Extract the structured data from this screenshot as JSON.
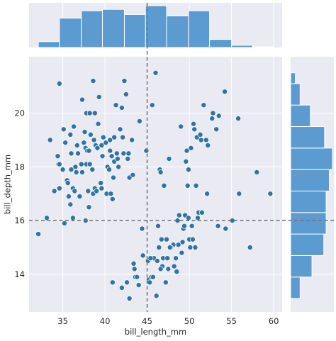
{
  "chart_data": {
    "type": "scatter",
    "subtype": "jointplot",
    "xlabel": "bill_length_mm",
    "ylabel": "bill_depth_mm",
    "xlim": [
      31,
      61
    ],
    "ylim": [
      12.6,
      22.1
    ],
    "xticks": [
      35,
      40,
      45,
      50,
      55,
      60
    ],
    "yticks": [
      14,
      16,
      18,
      20
    ],
    "grid": true,
    "reference_lines": {
      "x": 45,
      "y": 16
    },
    "colors": {
      "background": "#eaeaf2",
      "grid": "#ffffff",
      "marker": "#3274a1",
      "bar": "#5b9bd0",
      "bar_edge": "#ffffff",
      "refline": "#777777"
    },
    "marginal_x_hist": {
      "bin_edges": [
        32.1,
        34.6,
        37.2,
        39.7,
        42.3,
        44.8,
        47.3,
        49.9,
        52.4,
        55.0,
        57.5,
        60.0
      ],
      "counts": [
        8,
        40,
        50,
        52,
        45,
        57,
        43,
        50,
        11,
        3,
        1
      ]
    },
    "marginal_y_hist": {
      "bin_edges": [
        13.1,
        13.9,
        14.7,
        15.5,
        16.3,
        17.1,
        17.9,
        18.7,
        19.5,
        20.3,
        21.1,
        21.5
      ],
      "counts": [
        12,
        27,
        42,
        45,
        45,
        49,
        53,
        43,
        25,
        12,
        6
      ]
    },
    "points": [
      [
        32.1,
        15.5
      ],
      [
        33.1,
        16.1
      ],
      [
        33.5,
        19.0
      ],
      [
        34.4,
        18.4
      ],
      [
        34.5,
        18.1
      ],
      [
        34.6,
        21.1
      ],
      [
        34.6,
        17.2
      ],
      [
        34.0,
        17.1
      ],
      [
        34.6,
        18.1
      ],
      [
        35.0,
        17.9
      ],
      [
        35.1,
        19.4
      ],
      [
        35.2,
        15.9
      ],
      [
        35.3,
        18.9
      ],
      [
        35.5,
        17.5
      ],
      [
        35.6,
        17.4
      ],
      [
        35.7,
        16.9
      ],
      [
        35.9,
        19.2
      ],
      [
        35.9,
        16.6
      ],
      [
        36.0,
        17.9
      ],
      [
        36.0,
        18.5
      ],
      [
        36.2,
        17.2
      ],
      [
        36.2,
        16.1
      ],
      [
        36.3,
        19.5
      ],
      [
        36.4,
        17.1
      ],
      [
        36.5,
        18.0
      ],
      [
        36.6,
        17.8
      ],
      [
        36.7,
        18.8
      ],
      [
        36.8,
        18.5
      ],
      [
        37.0,
        16.9
      ],
      [
        37.2,
        18.1
      ],
      [
        37.3,
        20.5
      ],
      [
        37.3,
        17.8
      ],
      [
        37.5,
        18.9
      ],
      [
        37.6,
        19.3
      ],
      [
        37.7,
        18.7
      ],
      [
        37.7,
        16.0
      ],
      [
        37.8,
        20.0
      ],
      [
        37.8,
        18.1
      ],
      [
        37.9,
        18.6
      ],
      [
        38.0,
        17.1
      ],
      [
        38.1,
        18.6
      ],
      [
        38.1,
        16.5
      ],
      [
        38.2,
        18.1
      ],
      [
        38.2,
        20.0
      ],
      [
        38.3,
        19.2
      ],
      [
        38.5,
        17.9
      ],
      [
        38.6,
        21.2
      ],
      [
        38.6,
        17.0
      ],
      [
        38.7,
        19.0
      ],
      [
        38.8,
        17.2
      ],
      [
        38.8,
        20.0
      ],
      [
        38.9,
        18.8
      ],
      [
        39.0,
        17.1
      ],
      [
        39.1,
        18.7
      ],
      [
        39.2,
        19.6
      ],
      [
        39.3,
        20.6
      ],
      [
        39.5,
        17.4
      ],
      [
        39.6,
        18.8
      ],
      [
        39.6,
        17.2
      ],
      [
        39.7,
        18.4
      ],
      [
        39.8,
        19.1
      ],
      [
        40.1,
        18.9
      ],
      [
        40.2,
        17.0
      ],
      [
        40.3,
        18.0
      ],
      [
        40.5,
        17.9
      ],
      [
        40.6,
        18.6
      ],
      [
        40.6,
        19.0
      ],
      [
        40.7,
        17.0
      ],
      [
        40.8,
        18.4
      ],
      [
        40.9,
        16.8
      ],
      [
        41.0,
        17.6
      ],
      [
        41.1,
        18.2
      ],
      [
        41.1,
        19.1
      ],
      [
        41.3,
        20.3
      ],
      [
        41.4,
        18.5
      ],
      [
        41.5,
        18.3
      ],
      [
        41.6,
        18.0
      ],
      [
        41.8,
        19.4
      ],
      [
        42.0,
        20.2
      ],
      [
        42.1,
        19.1
      ],
      [
        42.2,
        18.5
      ],
      [
        42.3,
        21.2
      ],
      [
        42.5,
        20.7
      ],
      [
        42.7,
        18.3
      ],
      [
        42.8,
        18.5
      ],
      [
        42.9,
        17.6
      ],
      [
        43.2,
        19.0
      ],
      [
        43.3,
        17.7
      ],
      [
        44.1,
        19.7
      ],
      [
        44.9,
        18.6
      ],
      [
        45.6,
        20.3
      ],
      [
        46.0,
        21.5
      ],
      [
        46.3,
        15.8
      ],
      [
        46.5,
        17.9
      ],
      [
        46.7,
        15.3
      ],
      [
        46.8,
        14.3
      ],
      [
        47.0,
        17.3
      ],
      [
        47.5,
        14.2
      ],
      [
        47.6,
        18.3
      ],
      [
        48.1,
        15.1
      ],
      [
        48.4,
        14.6
      ],
      [
        48.7,
        15.1
      ],
      [
        49.0,
        19.5
      ],
      [
        49.1,
        14.8
      ],
      [
        49.2,
        15.2
      ],
      [
        49.5,
        16.2
      ],
      [
        49.6,
        18.2
      ],
      [
        49.8,
        17.3
      ],
      [
        50.0,
        15.3
      ],
      [
        50.2,
        18.7
      ],
      [
        50.4,
        15.3
      ],
      [
        50.5,
        19.6
      ],
      [
        50.8,
        17.3
      ],
      [
        50.9,
        19.1
      ],
      [
        51.1,
        16.3
      ],
      [
        51.3,
        19.2
      ],
      [
        51.5,
        16.3
      ],
      [
        51.7,
        20.3
      ],
      [
        52.0,
        19.0
      ],
      [
        52.2,
        18.8
      ],
      [
        52.7,
        19.8
      ],
      [
        53.5,
        19.9
      ],
      [
        54.2,
        20.8
      ],
      [
        55.8,
        19.8
      ],
      [
        55.9,
        17.0
      ],
      [
        58.0,
        17.8
      ],
      [
        59.6,
        17.0
      ],
      [
        45.1,
        14.5
      ],
      [
        45.2,
        13.8
      ],
      [
        45.3,
        13.7
      ],
      [
        45.5,
        13.9
      ],
      [
        45.8,
        14.6
      ],
      [
        46.1,
        13.2
      ],
      [
        46.2,
        14.5
      ],
      [
        46.4,
        15.0
      ],
      [
        46.9,
        14.6
      ],
      [
        47.2,
        13.7
      ],
      [
        47.3,
        15.3
      ],
      [
        47.8,
        15.0
      ],
      [
        48.2,
        14.3
      ],
      [
        48.5,
        14.1
      ],
      [
        48.8,
        16.2
      ],
      [
        49.3,
        15.7
      ],
      [
        49.4,
        15.8
      ],
      [
        49.9,
        16.1
      ],
      [
        50.1,
        15.0
      ],
      [
        50.3,
        15.8
      ],
      [
        50.7,
        15.0
      ],
      [
        51.0,
        16.1
      ],
      [
        52.1,
        17.0
      ],
      [
        53.4,
        15.8
      ],
      [
        55.1,
        16.0
      ],
      [
        43.4,
        14.4
      ],
      [
        44.0,
        13.6
      ],
      [
        44.4,
        15.7
      ],
      [
        44.5,
        14.7
      ],
      [
        42.6,
        13.7
      ],
      [
        42.9,
        13.1
      ],
      [
        43.5,
        14.2
      ],
      [
        43.6,
        13.9
      ],
      [
        43.8,
        13.9
      ],
      [
        40.9,
        13.7
      ],
      [
        42.0,
        13.5
      ],
      [
        46.6,
        17.8
      ],
      [
        46.6,
        14.2
      ],
      [
        47.4,
        14.6
      ],
      [
        45.4,
        14.6
      ],
      [
        45.7,
        13.9
      ],
      [
        47.7,
        15.0
      ],
      [
        48.6,
        16.0
      ],
      [
        49.7,
        18.6
      ],
      [
        50.6,
        19.4
      ],
      [
        51.4,
        19.0
      ],
      [
        52.8,
        20.0
      ],
      [
        53.2,
        19.4
      ],
      [
        54.3,
        15.7
      ],
      [
        57.2,
        15.0
      ],
      [
        49.9,
        17.9
      ]
    ]
  }
}
